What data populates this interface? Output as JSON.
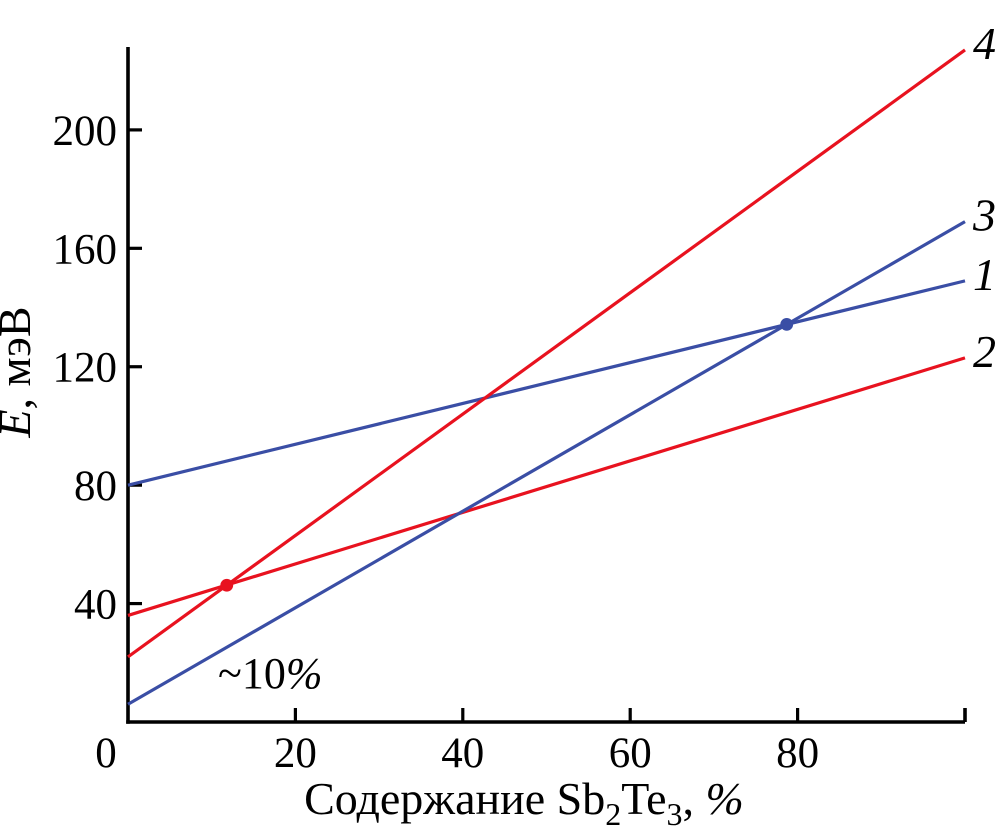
{
  "figure": {
    "background": "#ffffff"
  },
  "chart_data": {
    "type": "line",
    "title": "",
    "xlabel": "Содержание Sb2Te3, %",
    "xlabel_parts": [
      {
        "t": "Содержание Sb"
      },
      {
        "t": "2",
        "sub": true
      },
      {
        "t": "Te"
      },
      {
        "t": "3",
        "sub": true
      },
      {
        "t": ", "
      },
      {
        "t": "%",
        "italic": true
      }
    ],
    "ylabel": "E, мэВ",
    "ylabel_parts": [
      {
        "t": "E",
        "italic": true
      },
      {
        "t": ", мэВ"
      }
    ],
    "xlim": [
      0,
      100
    ],
    "ylim": [
      0,
      228
    ],
    "grid": false,
    "legend_position": "line-end-labels",
    "x_ticks": [
      {
        "v": 0,
        "label": "0",
        "dx": -22
      },
      {
        "v": 20,
        "label": "20",
        "dx": 0
      },
      {
        "v": 40,
        "label": "40",
        "dx": 0
      },
      {
        "v": 60,
        "label": "60",
        "dx": 0
      },
      {
        "v": 80,
        "label": "80",
        "dx": 0
      }
    ],
    "x_axis_end_tick": 100,
    "y_ticks": [
      {
        "v": 40,
        "label": "40"
      },
      {
        "v": 80,
        "label": "80"
      },
      {
        "v": 120,
        "label": "120"
      },
      {
        "v": 160,
        "label": "160"
      },
      {
        "v": 200,
        "label": "200"
      }
    ],
    "colors": {
      "blue": "#3a4ea5",
      "red": "#e8121f",
      "axis": "#000000",
      "text": "#000000"
    },
    "series": [
      {
        "name": "1",
        "color": "blue",
        "points": [
          [
            0,
            80
          ],
          [
            100,
            149
          ]
        ]
      },
      {
        "name": "2",
        "color": "red",
        "points": [
          [
            0,
            36
          ],
          [
            100,
            123
          ]
        ]
      },
      {
        "name": "3",
        "color": "blue",
        "points": [
          [
            0,
            6
          ],
          [
            100,
            169
          ]
        ]
      },
      {
        "name": "4",
        "color": "red",
        "points": [
          [
            0,
            22
          ],
          [
            100,
            227
          ]
        ]
      }
    ],
    "markers": [
      {
        "x": 78.7,
        "y": 134.3,
        "color": "blue"
      },
      {
        "x": 11.8,
        "y": 46.2,
        "color": "red"
      }
    ],
    "annotations": [
      {
        "x": 17,
        "y": 16.5,
        "parts": [
          {
            "t": "~10"
          },
          {
            "t": "%",
            "italic": true
          }
        ],
        "text": "~10%"
      }
    ]
  }
}
